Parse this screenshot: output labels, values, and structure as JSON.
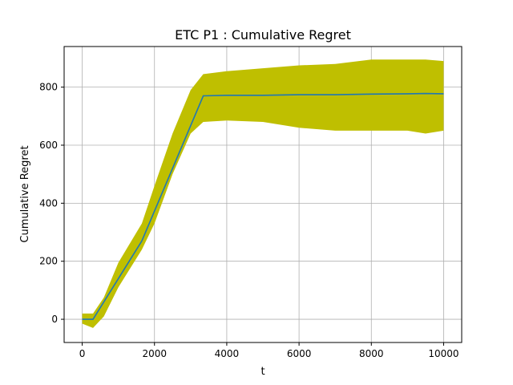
{
  "chart_data": {
    "type": "line",
    "title": "ETC P1 : Cumulative Regret",
    "xlabel": "t",
    "ylabel": "Cumulative Regret",
    "xlim": [
      -500,
      10500
    ],
    "ylim": [
      -80,
      940
    ],
    "xticks": [
      0,
      2000,
      4000,
      6000,
      8000,
      10000
    ],
    "yticks": [
      0,
      200,
      400,
      600,
      800
    ],
    "grid": true,
    "colors": {
      "mean": "#1f77b4",
      "band": "#bfbf00"
    },
    "series": [
      {
        "x": [
          0,
          300,
          1650,
          3350,
          4000,
          5000,
          6000,
          7000,
          8000,
          9000,
          9500,
          10000
        ],
        "values": [
          0,
          0,
          270,
          770,
          772,
          772,
          774,
          774,
          776,
          777,
          778,
          777
        ]
      }
    ],
    "band": {
      "x": [
        0,
        300,
        600,
        1000,
        1650,
        2000,
        2500,
        3000,
        3350,
        4000,
        5000,
        6000,
        7000,
        8000,
        9000,
        9500,
        10000
      ],
      "lower": [
        -15,
        -30,
        10,
        110,
        240,
        330,
        500,
        640,
        680,
        685,
        680,
        660,
        650,
        650,
        650,
        640,
        650
      ],
      "upper": [
        20,
        20,
        75,
        195,
        330,
        460,
        640,
        790,
        845,
        855,
        865,
        875,
        880,
        895,
        895,
        895,
        890
      ]
    }
  }
}
